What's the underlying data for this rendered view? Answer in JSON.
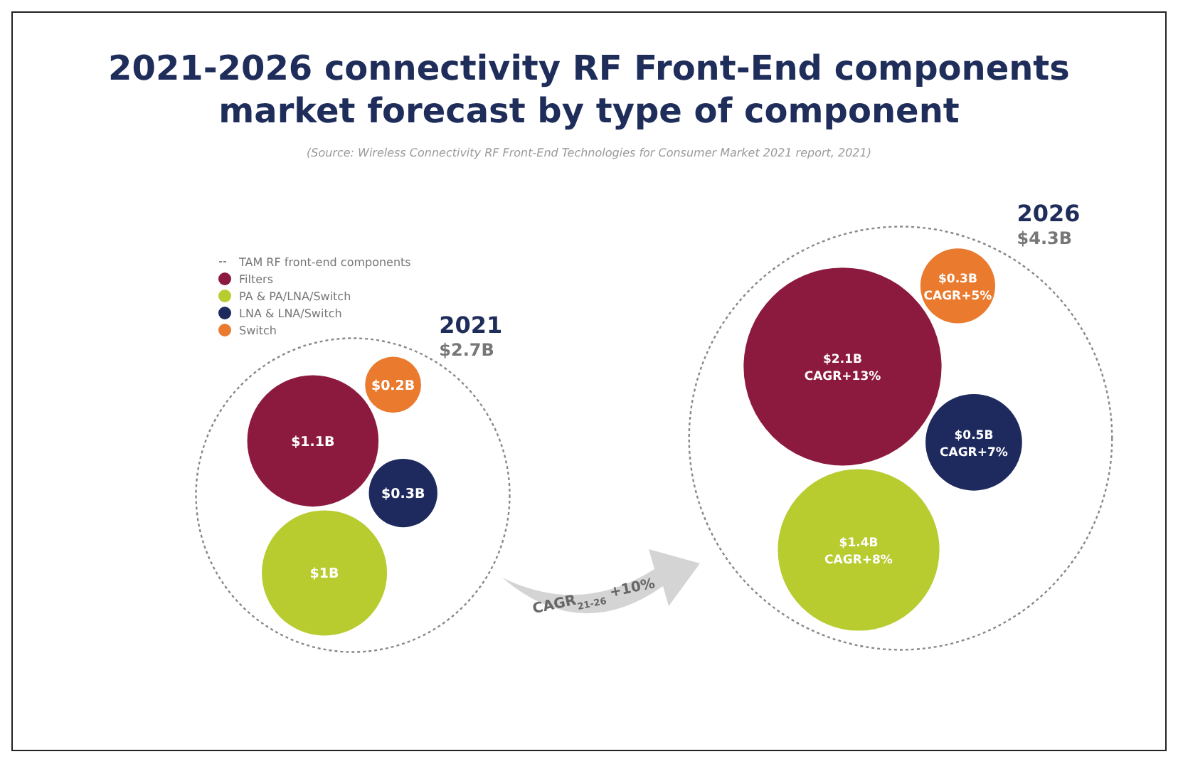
{
  "chart_data": {
    "type": "other",
    "title": "2021-2026 connectivity RF Front-End components market forecast by type of component",
    "subtitle": "(Source: Wireless Connectivity RF Front-End Technologies for Consumer Market 2021 report, 2021)",
    "categories": [
      "2021",
      "2026"
    ],
    "legend_title": "TAM RF front-end components",
    "legend": "top left",
    "series": [
      {
        "name": "Filters",
        "color": "#8c1a3f",
        "values": [
          1.1,
          2.1
        ],
        "value_labels": [
          "$1.1B",
          "$2.1B"
        ]
      },
      {
        "name": "PA & PA/LNA/Switch",
        "color": "#b8cc30",
        "values": [
          1,
          1.4
        ],
        "value_labels": [
          "$1B",
          "$1.4B"
        ]
      },
      {
        "name": "LNA & LNA/Switch",
        "color": "#1e2a5e",
        "values": [
          0.3,
          0.5
        ],
        "value_labels": [
          "$0.3B",
          "$0.5B"
        ]
      },
      {
        "name": "Switch",
        "color": "#ea7a2e",
        "values": [
          0.2,
          0.3
        ],
        "value_labels": [
          "$0.2B",
          "$0.3B"
        ]
      }
    ],
    "totals": [
      "$2.7B",
      "$4.3B"
    ],
    "annotations": [
      "CAGR$_{21-26}$ +10%",
      "CAGR+13%",
      "CAGR+8%",
      "CAGR+7%",
      "CAGR+5%"
    ]
  }
}
